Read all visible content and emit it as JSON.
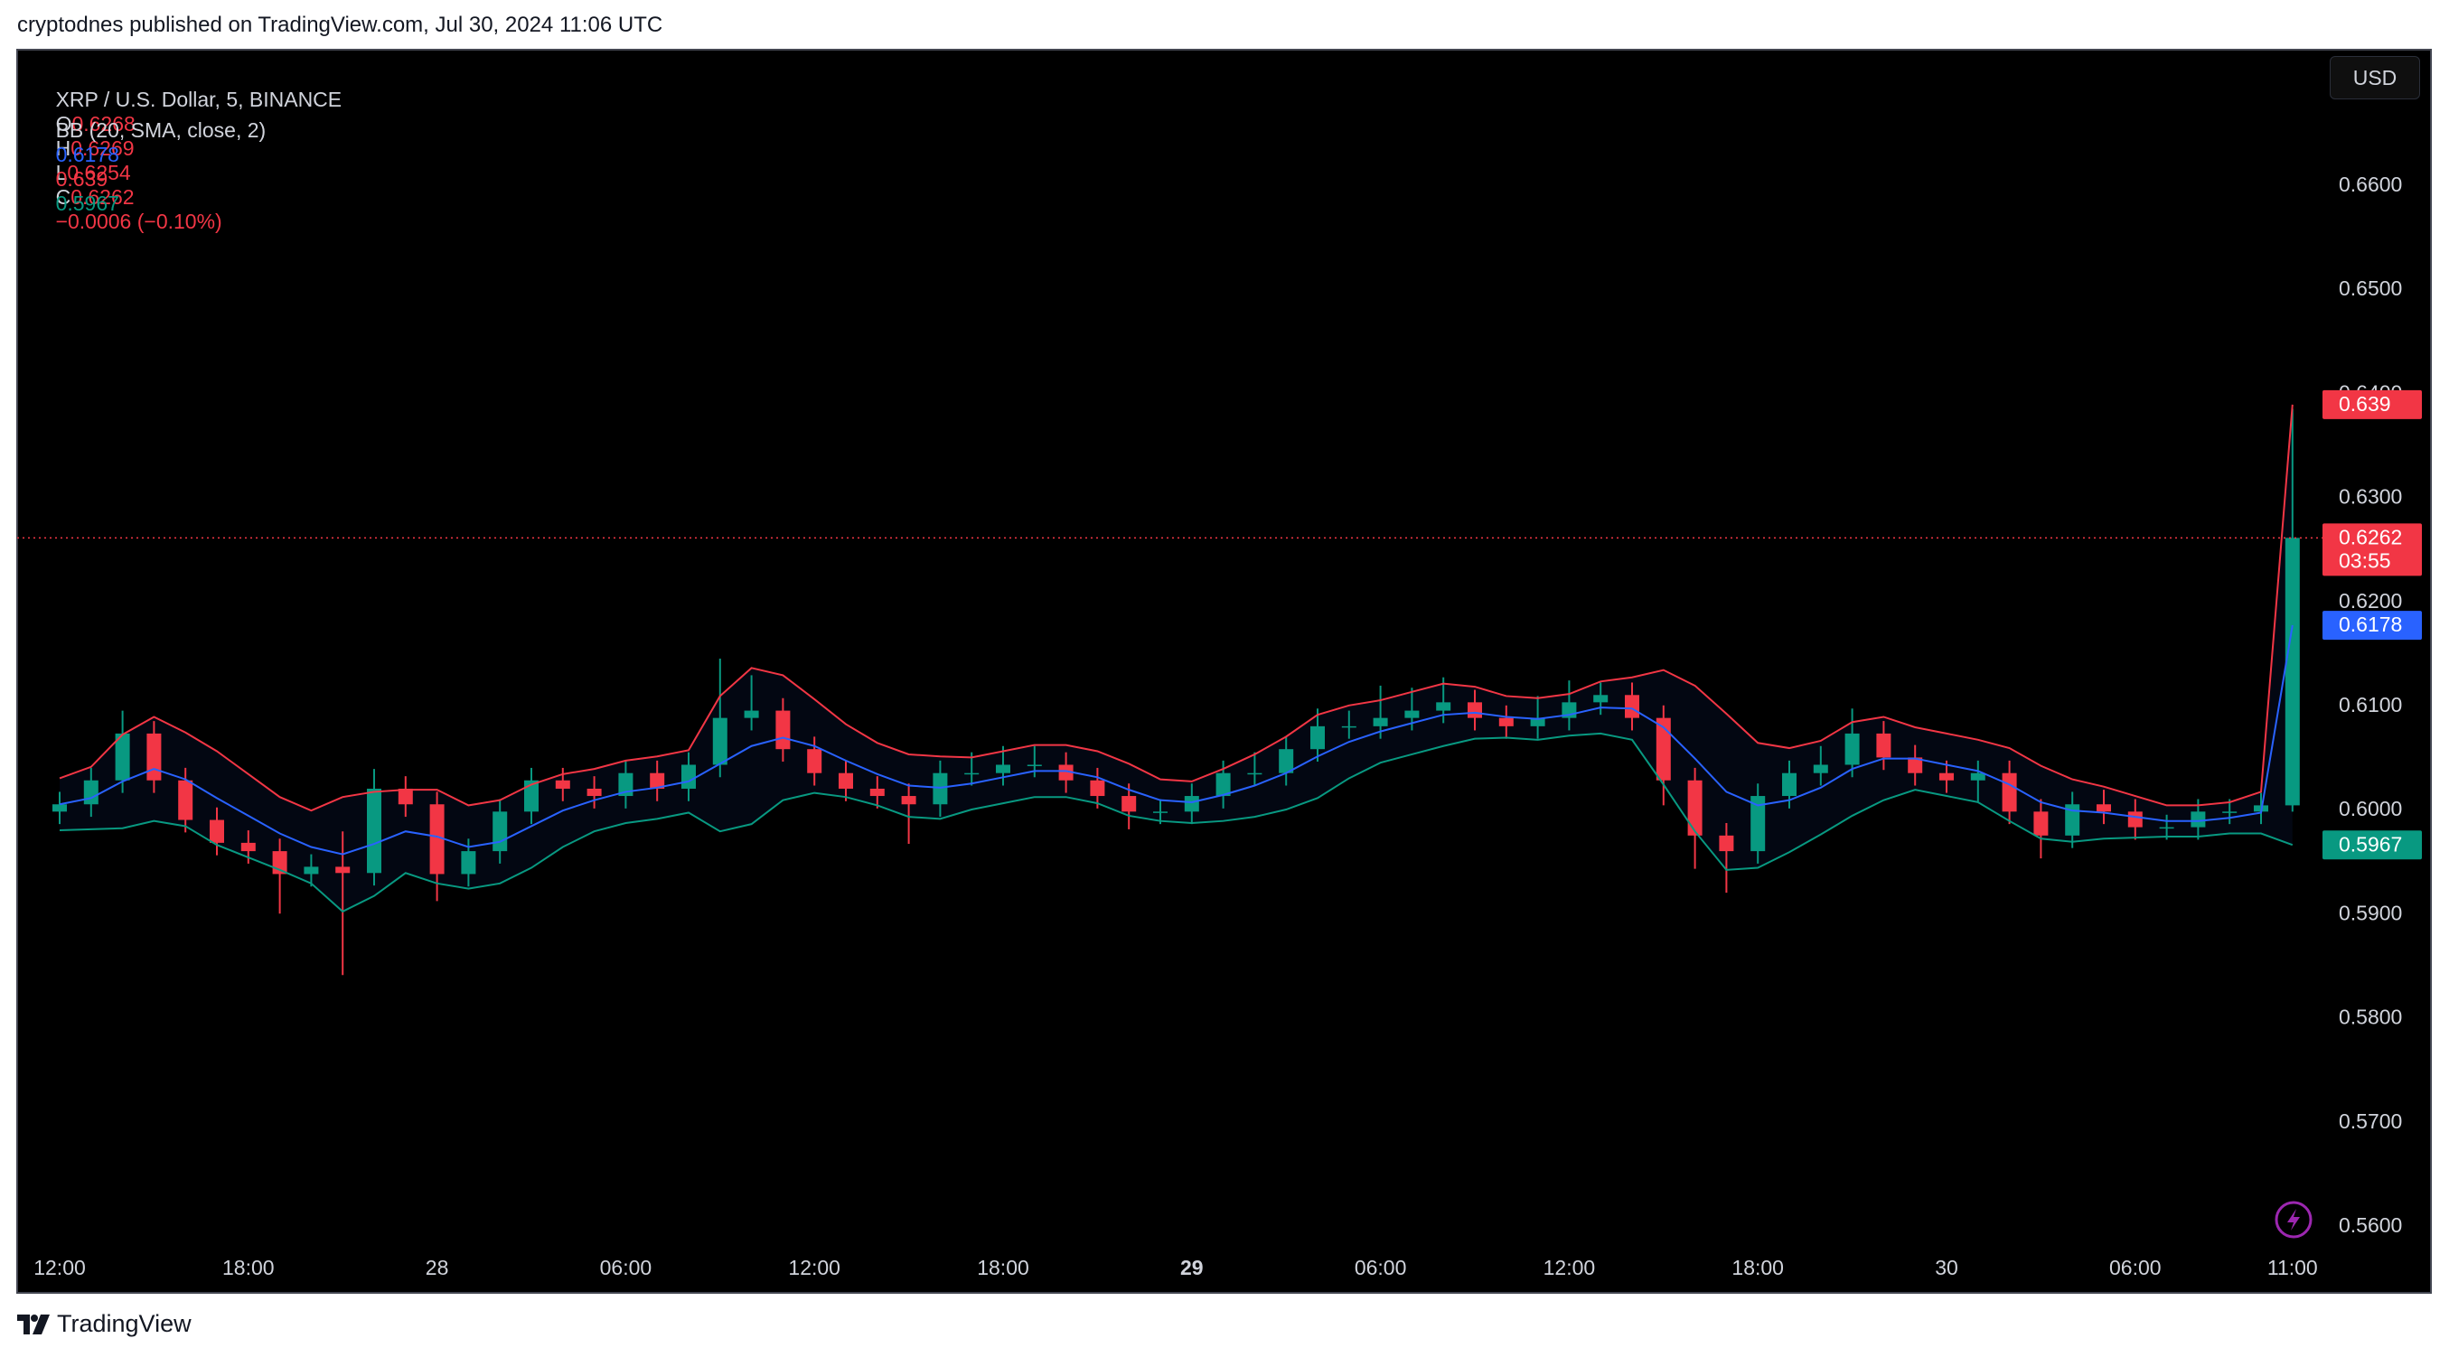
{
  "header": {
    "attribution": "cryptodnes published on TradingView.com, Jul 30, 2024 11:06 UTC"
  },
  "chart_data": {
    "type": "candlestick",
    "symbol": "XRP / U.S. Dollar, 5, BINANCE",
    "ohlc_legend": {
      "o_label": "O",
      "open": 0.6268,
      "h_label": "H",
      "high": 0.6269,
      "l_label": "L",
      "low": 0.6254,
      "c_label": "C",
      "close": 0.6262,
      "change": "−0.0006 (−0.10%)"
    },
    "indicator": "BB (20, SMA, close, 2)",
    "currency": "USD",
    "countdown": "03:55",
    "categories": [
      "12:00",
      null,
      null,
      null,
      null,
      null,
      "18:00",
      null,
      null,
      null,
      null,
      null,
      "28",
      null,
      null,
      null,
      null,
      null,
      "06:00",
      null,
      null,
      null,
      null,
      null,
      "12:00",
      null,
      null,
      null,
      null,
      null,
      "18:00",
      null,
      null,
      null,
      null,
      null,
      "29",
      null,
      null,
      null,
      null,
      null,
      "06:00",
      null,
      null,
      null,
      null,
      null,
      "12:00",
      null,
      null,
      null,
      null,
      null,
      "18:00",
      null,
      null,
      null,
      null,
      null,
      "30",
      null,
      null,
      null,
      null,
      null,
      "06:00",
      null,
      null,
      null,
      null,
      "11:00"
    ],
    "open": [
      0.5999,
      0.6006,
      0.6029,
      0.6074,
      0.6029,
      0.5991,
      0.5969,
      0.5961,
      0.5939,
      0.5946,
      0.594,
      0.6021,
      0.6006,
      0.5939,
      0.5961,
      0.5999,
      0.6029,
      0.6021,
      0.6014,
      0.6036,
      0.6021,
      0.6044,
      0.6089,
      0.6096,
      0.6059,
      0.6036,
      0.6021,
      0.6014,
      0.6006,
      0.6036,
      0.6036,
      0.6044,
      0.6044,
      0.6029,
      0.6014,
      0.5999,
      0.5999,
      0.6014,
      0.6036,
      0.6036,
      0.6059,
      0.6081,
      0.6081,
      0.6089,
      0.6096,
      0.6104,
      0.6089,
      0.6081,
      0.6089,
      0.6104,
      0.6111,
      0.6089,
      0.6029,
      0.5976,
      0.5961,
      0.6014,
      0.6036,
      0.6044,
      0.6074,
      0.6051,
      0.6036,
      0.6029,
      0.6036,
      0.5999,
      0.5976,
      0.6006,
      0.5999,
      0.5984,
      0.5984,
      0.5999,
      0.5999,
      0.6005
    ],
    "high": [
      0.6018,
      0.6041,
      0.6096,
      0.6086,
      0.6041,
      0.6003,
      0.5981,
      0.5973,
      0.5958,
      0.598,
      0.604,
      0.6033,
      0.6018,
      0.5973,
      0.6011,
      0.6041,
      0.6041,
      0.6033,
      0.6048,
      0.6048,
      0.6056,
      0.6146,
      0.613,
      0.6108,
      0.6071,
      0.6048,
      0.6033,
      0.6026,
      0.6048,
      0.6056,
      0.6062,
      0.6062,
      0.6056,
      0.6041,
      0.6026,
      0.6011,
      0.6026,
      0.6048,
      0.6056,
      0.6071,
      0.6098,
      0.6096,
      0.612,
      0.6118,
      0.6128,
      0.6116,
      0.6101,
      0.611,
      0.6125,
      0.6123,
      0.6123,
      0.6101,
      0.6041,
      0.5988,
      0.6026,
      0.6048,
      0.6062,
      0.6098,
      0.6086,
      0.6063,
      0.6048,
      0.6048,
      0.6048,
      0.6011,
      0.6018,
      0.602,
      0.6011,
      0.5996,
      0.6011,
      0.6011,
      0.6017,
      0.6386
    ],
    "low": [
      0.5987,
      0.5994,
      0.6017,
      0.6017,
      0.5979,
      0.5957,
      0.5949,
      0.5901,
      0.5927,
      0.5842,
      0.5928,
      0.5994,
      0.5913,
      0.5927,
      0.5949,
      0.5987,
      0.6009,
      0.6002,
      0.6002,
      0.6009,
      0.6009,
      0.6032,
      0.6077,
      0.6047,
      0.6024,
      0.6009,
      0.6002,
      0.5968,
      0.5994,
      0.6024,
      0.6024,
      0.6032,
      0.6017,
      0.6002,
      0.5982,
      0.5987,
      0.5987,
      0.6002,
      0.6024,
      0.6024,
      0.6047,
      0.6069,
      0.6069,
      0.6077,
      0.6084,
      0.6077,
      0.6069,
      0.6069,
      0.6077,
      0.6092,
      0.6077,
      0.6005,
      0.5944,
      0.5921,
      0.5949,
      0.6002,
      0.6024,
      0.6032,
      0.6039,
      0.6024,
      0.6017,
      0.6008,
      0.5987,
      0.5954,
      0.5964,
      0.5987,
      0.5972,
      0.5972,
      0.5972,
      0.5987,
      0.5987,
      0.5999
    ],
    "close": [
      0.6006,
      0.6029,
      0.6074,
      0.6029,
      0.5991,
      0.5969,
      0.5961,
      0.5939,
      0.5946,
      0.594,
      0.6021,
      0.6006,
      0.5939,
      0.5961,
      0.5999,
      0.6029,
      0.6021,
      0.6014,
      0.6036,
      0.6021,
      0.6044,
      0.6089,
      0.6096,
      0.6059,
      0.6036,
      0.6021,
      0.6014,
      0.6006,
      0.6036,
      0.6036,
      0.6044,
      0.6044,
      0.6029,
      0.6014,
      0.5999,
      0.5999,
      0.6014,
      0.6036,
      0.6036,
      0.6059,
      0.6081,
      0.6081,
      0.6089,
      0.6096,
      0.6104,
      0.6089,
      0.6081,
      0.6089,
      0.6104,
      0.6111,
      0.6089,
      0.6029,
      0.5976,
      0.5961,
      0.6014,
      0.6036,
      0.6044,
      0.6074,
      0.6051,
      0.6036,
      0.6029,
      0.6036,
      0.5999,
      0.5976,
      0.6006,
      0.5999,
      0.5984,
      0.5984,
      0.5999,
      0.5999,
      0.6005,
      0.6262
    ],
    "up_color": "#089981",
    "down_color": "#f23645",
    "bands": [
      {
        "color": "#2962ff",
        "values": [
          0.6006,
          0.6012,
          0.6028,
          0.604,
          0.603,
          0.6012,
          0.5995,
          0.5978,
          0.5965,
          0.5958,
          0.5968,
          0.598,
          0.5975,
          0.5965,
          0.597,
          0.5985,
          0.6,
          0.601,
          0.6018,
          0.6022,
          0.6028,
          0.6045,
          0.6062,
          0.607,
          0.6062,
          0.6048,
          0.6035,
          0.6024,
          0.6022,
          0.6026,
          0.6032,
          0.6038,
          0.6038,
          0.6032,
          0.602,
          0.601,
          0.6008,
          0.6015,
          0.6024,
          0.6036,
          0.6052,
          0.6066,
          0.6076,
          0.6084,
          0.6092,
          0.6094,
          0.609,
          0.6088,
          0.6092,
          0.6099,
          0.6098,
          0.608,
          0.605,
          0.6018,
          0.6005,
          0.601,
          0.6022,
          0.604,
          0.605,
          0.605,
          0.6044,
          0.6038,
          0.6025,
          0.6008,
          0.6,
          0.5998,
          0.5994,
          0.599,
          0.599,
          0.5993,
          0.5998,
          0.6178
        ]
      },
      {
        "color": "#f23645",
        "values": [
          0.6031,
          0.6042,
          0.6073,
          0.609,
          0.6075,
          0.6057,
          0.6035,
          0.6013,
          0.6,
          0.6013,
          0.6018,
          0.602,
          0.602,
          0.6005,
          0.601,
          0.6025,
          0.6035,
          0.604,
          0.6048,
          0.6052,
          0.6058,
          0.611,
          0.6137,
          0.613,
          0.6107,
          0.6083,
          0.6065,
          0.6054,
          0.6052,
          0.6051,
          0.6057,
          0.6063,
          0.6063,
          0.6057,
          0.6045,
          0.603,
          0.6028,
          0.604,
          0.6054,
          0.6071,
          0.6092,
          0.6101,
          0.6106,
          0.6114,
          0.6122,
          0.6119,
          0.611,
          0.6108,
          0.6112,
          0.6124,
          0.6128,
          0.6135,
          0.612,
          0.6093,
          0.6065,
          0.606,
          0.6067,
          0.6085,
          0.609,
          0.608,
          0.6074,
          0.6068,
          0.606,
          0.6043,
          0.603,
          0.6023,
          0.6014,
          0.6005,
          0.6005,
          0.6008,
          0.6018,
          0.639
        ]
      },
      {
        "color": "#089981",
        "values": [
          0.5981,
          0.5982,
          0.5983,
          0.599,
          0.5985,
          0.5967,
          0.5955,
          0.5943,
          0.593,
          0.5903,
          0.5918,
          0.594,
          0.593,
          0.5925,
          0.593,
          0.5945,
          0.5965,
          0.598,
          0.5988,
          0.5992,
          0.5998,
          0.598,
          0.5987,
          0.601,
          0.6017,
          0.6013,
          0.6005,
          0.5994,
          0.5992,
          0.6001,
          0.6007,
          0.6013,
          0.6013,
          0.6007,
          0.5995,
          0.599,
          0.5988,
          0.599,
          0.5994,
          0.6001,
          0.6012,
          0.6031,
          0.6046,
          0.6054,
          0.6062,
          0.6069,
          0.607,
          0.6068,
          0.6072,
          0.6074,
          0.6068,
          0.6025,
          0.598,
          0.5943,
          0.5945,
          0.596,
          0.5977,
          0.5995,
          0.601,
          0.602,
          0.6014,
          0.6008,
          0.599,
          0.5973,
          0.597,
          0.5973,
          0.5974,
          0.5975,
          0.5975,
          0.5978,
          0.5978,
          0.5967
        ]
      }
    ],
    "ylim": [
      0.5577,
      0.6731
    ],
    "yticks": [
      {
        "value": 0.56,
        "label": "0.5600"
      },
      {
        "value": 0.57,
        "label": "0.5700"
      },
      {
        "value": 0.58,
        "label": "0.5800"
      },
      {
        "value": 0.59,
        "label": "0.5900"
      },
      {
        "value": 0.6,
        "label": "0.6000"
      },
      {
        "value": 0.61,
        "label": "0.6100"
      },
      {
        "value": 0.62,
        "label": "0.6200"
      },
      {
        "value": 0.63,
        "label": "0.6300"
      },
      {
        "value": 0.64,
        "label": "0.6400"
      },
      {
        "value": 0.65,
        "label": "0.6500"
      },
      {
        "value": 0.66,
        "label": "0.6600"
      }
    ],
    "grid": false
  },
  "footer": {
    "brand": "TradingView"
  }
}
